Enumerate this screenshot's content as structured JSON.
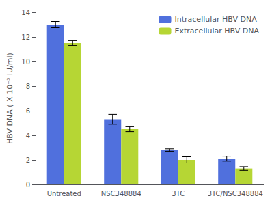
{
  "chart_data": {
    "type": "bar",
    "ylabel": "HBV DNA ( X 10⁻³ IU/ml)",
    "categories": [
      "Untreated",
      "NSC348884",
      "3TC",
      "3TC/NSC348884"
    ],
    "series": [
      {
        "name": "Intracellular HBV DNA",
        "values": [
          13.0,
          5.3,
          2.8,
          2.1
        ],
        "errors": [
          0.25,
          0.4,
          0.1,
          0.2
        ]
      },
      {
        "name": "Extracellular HBV DNA",
        "values": [
          11.5,
          4.5,
          2.0,
          1.3
        ],
        "errors": [
          0.2,
          0.2,
          0.25,
          0.15
        ]
      }
    ],
    "ylim": [
      0,
      14
    ],
    "yticks": [
      0,
      2,
      4,
      6,
      8,
      10,
      12,
      14
    ],
    "grid": false,
    "legend": "upper right"
  }
}
